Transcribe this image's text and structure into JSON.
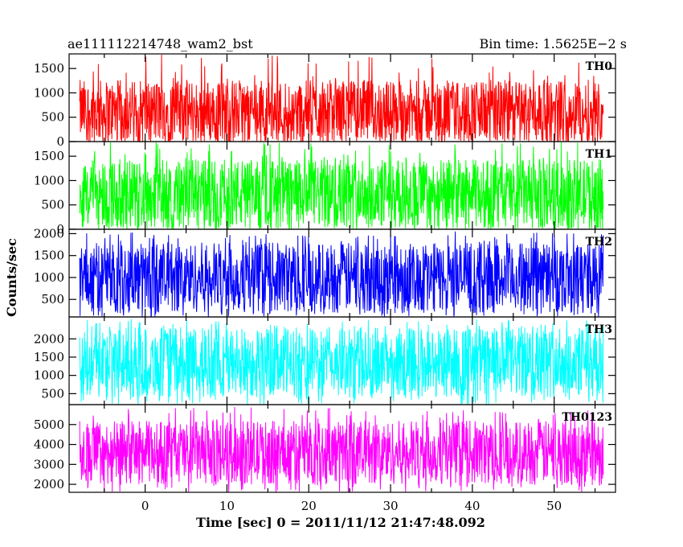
{
  "header": {
    "left_title": "ae111112214748_wam2_bst",
    "right_title": "Bin time: 1.5625E−2 s"
  },
  "xlabel": "Time [sec] 0 = 2011/11/12 21:47:48.092",
  "ylabel": "Counts/sec",
  "chart_data": {
    "type": "line",
    "x_range": [
      -8,
      56
    ],
    "xlim": [
      -9.3,
      57.5
    ],
    "x_ticks": [
      0,
      10,
      20,
      30,
      40,
      50
    ],
    "x_tick_labels": [
      "0",
      "10",
      "20",
      "30",
      "40",
      "50"
    ],
    "bin_time_s": 0.015625,
    "grid": false,
    "legend": "none",
    "panels": [
      {
        "name": "TH0",
        "color": "#ff0000",
        "ylim": [
          0,
          1800
        ],
        "y_ticks": [
          0,
          500,
          1000,
          1500
        ],
        "y_tick_labels": [
          "0",
          "500",
          "1000",
          "1500"
        ],
        "mean": 620,
        "typical_min": 50,
        "typical_max": 1350,
        "peak": 1800
      },
      {
        "name": "TH1",
        "color": "#00ff00",
        "ylim": [
          0,
          1800
        ],
        "y_ticks": [
          0,
          500,
          1000,
          1500
        ],
        "y_tick_labels": [
          "0",
          "500",
          "1000",
          "1500"
        ],
        "mean": 720,
        "typical_min": 60,
        "typical_max": 1500,
        "peak": 1800
      },
      {
        "name": "TH2",
        "color": "#0000ff",
        "ylim": [
          100,
          2100
        ],
        "y_ticks": [
          500,
          1000,
          1500,
          2000
        ],
        "y_tick_labels": [
          "500",
          "1000",
          "1500",
          "2000"
        ],
        "mean": 1000,
        "typical_min": 200,
        "typical_max": 1800,
        "peak": 2050
      },
      {
        "name": "TH3",
        "color": "#00ffff",
        "ylim": [
          200,
          2600
        ],
        "y_ticks": [
          500,
          1000,
          1500,
          2000
        ],
        "y_tick_labels": [
          "500",
          "1000",
          "1500",
          "2000"
        ],
        "mean": 1350,
        "typical_min": 350,
        "typical_max": 2300,
        "peak": 2550
      },
      {
        "name": "TH0123",
        "color": "#ff00ff",
        "ylim": [
          1600,
          6000
        ],
        "y_ticks": [
          2000,
          3000,
          4000,
          5000
        ],
        "y_tick_labels": [
          "2000",
          "3000",
          "4000",
          "5000"
        ],
        "mean": 3600,
        "typical_min": 2000,
        "typical_max": 5200,
        "peak": 5900
      }
    ]
  }
}
